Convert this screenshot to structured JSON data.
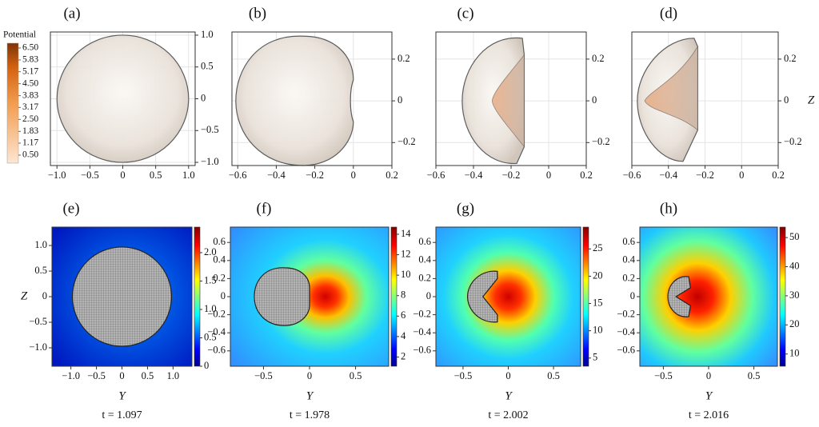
{
  "chart_data": [
    {
      "type": "surface",
      "panel_label": "(a)",
      "xlim": [
        -1.1,
        1.1
      ],
      "ylim": [
        -1.05,
        1.05
      ],
      "xticks": [
        {
          "value": -1,
          "label": "−1.0"
        },
        {
          "value": -0.5,
          "label": "−0.5"
        },
        0,
        0.5,
        {
          "value": 1,
          "label": "1.0"
        }
      ],
      "yticks": [
        {
          "value": -1,
          "label": "−1.0"
        },
        {
          "value": -0.5,
          "label": "−0.5"
        },
        0,
        0.5,
        {
          "value": 1,
          "label": "1.0"
        }
      ],
      "grid": true,
      "colorbar": {
        "title": "Potential",
        "ticks": [
          {
            "value": 6.5,
            "label": "6.50"
          },
          5.83,
          5.17,
          {
            "value": 4.5,
            "label": "4.50"
          },
          3.83,
          3.17,
          {
            "value": 2.5,
            "label": "2.50"
          },
          1.83,
          1.17,
          {
            "value": 0.5,
            "label": "0.50"
          }
        ]
      }
    },
    {
      "type": "surface",
      "panel_label": "(b)",
      "xlim": [
        -0.63,
        0.2
      ],
      "ylim": [
        -0.31,
        0.33
      ],
      "xticks": [
        {
          "value": -0.6,
          "label": "−0.6"
        },
        {
          "value": -0.4,
          "label": "−0.4"
        },
        {
          "value": -0.2,
          "label": "−0.2"
        },
        0,
        0.2
      ],
      "yticks": [
        {
          "value": -0.2,
          "label": "−0.2"
        },
        0,
        0.2
      ],
      "grid": true
    },
    {
      "type": "surface",
      "panel_label": "(c)",
      "xlim": [
        -0.6,
        0.2
      ],
      "ylim": [
        -0.31,
        0.33
      ],
      "xticks": [
        {
          "value": -0.6,
          "label": "−0.6"
        },
        {
          "value": -0.4,
          "label": "−0.4"
        },
        {
          "value": -0.2,
          "label": "−0.2"
        },
        0,
        0.2
      ],
      "yticks": [
        {
          "value": -0.2,
          "label": "−0.2"
        },
        0,
        0.2
      ],
      "grid": true
    },
    {
      "type": "surface",
      "panel_label": "(d)",
      "xlim": [
        -0.6,
        0.2
      ],
      "ylim": [
        -0.31,
        0.33
      ],
      "xticks": [
        {
          "value": -0.6,
          "label": "−0.6"
        },
        {
          "value": -0.4,
          "label": "−0.4"
        },
        {
          "value": -0.2,
          "label": "−0.2"
        },
        0,
        0.2
      ],
      "yticks": [
        {
          "value": -0.2,
          "label": "−0.2"
        },
        0,
        0.2
      ],
      "grid": true,
      "y_label": "Z"
    },
    {
      "type": "heatmap",
      "panel_label": "(e)",
      "xlim": [
        -1.37,
        1.37
      ],
      "ylim": [
        -1.36,
        1.36
      ],
      "xticks": [
        {
          "value": -1,
          "label": "−1.0"
        },
        {
          "value": -0.5,
          "label": "−0.5"
        },
        0,
        0.5,
        {
          "value": 1,
          "label": "1.0"
        }
      ],
      "yticks": [
        {
          "value": -1,
          "label": "−1.0"
        },
        {
          "value": -0.5,
          "label": "−0.5"
        },
        0,
        0.5,
        {
          "value": 1,
          "label": "1.0"
        }
      ],
      "x_label": "Y",
      "y_label": "Z",
      "time_label": "t = 1.097",
      "clim": [
        0,
        2.45
      ],
      "cticks": [
        0,
        0.5,
        {
          "value": 1,
          "label": "1.0"
        },
        1.5,
        {
          "value": 2,
          "label": "2.0"
        }
      ]
    },
    {
      "type": "heatmap",
      "panel_label": "(f)",
      "xlim": [
        -0.86,
        0.86
      ],
      "ylim": [
        -0.77,
        0.77
      ],
      "xticks": [
        {
          "value": -0.5,
          "label": "−0.5"
        },
        0,
        0.5
      ],
      "yticks": [
        {
          "value": -0.6,
          "label": "−0.6"
        },
        {
          "value": -0.4,
          "label": "−0.4"
        },
        {
          "value": -0.2,
          "label": "−0.2"
        },
        0,
        0.2,
        0.4,
        0.6
      ],
      "x_label": "Y",
      "time_label": "t = 1.978",
      "clim": [
        1.1,
        14.7
      ],
      "cticks": [
        2,
        4,
        6,
        8,
        10,
        12,
        14
      ]
    },
    {
      "type": "heatmap",
      "panel_label": "(g)",
      "xlim": [
        -0.8,
        0.8
      ],
      "ylim": [
        -0.77,
        0.77
      ],
      "xticks": [
        {
          "value": -0.5,
          "label": "−0.5"
        },
        0,
        0.5
      ],
      "yticks": [
        {
          "value": -0.6,
          "label": "−0.6"
        },
        {
          "value": -0.4,
          "label": "−0.4"
        },
        {
          "value": -0.2,
          "label": "−0.2"
        },
        0,
        0.2,
        0.4,
        0.6
      ],
      "x_label": "Y",
      "time_label": "t = 2.002",
      "clim": [
        3.5,
        29
      ],
      "cticks": [
        5,
        10,
        15,
        20,
        25
      ]
    },
    {
      "type": "heatmap",
      "panel_label": "(h)",
      "xlim": [
        -0.76,
        0.76
      ],
      "ylim": [
        -0.77,
        0.77
      ],
      "xticks": [
        {
          "value": -0.5,
          "label": "−0.5"
        },
        0,
        0.5
      ],
      "yticks": [
        {
          "value": -0.6,
          "label": "−0.6"
        },
        {
          "value": -0.4,
          "label": "−0.4"
        },
        {
          "value": -0.2,
          "label": "−0.2"
        },
        0,
        0.2,
        0.4,
        0.6
      ],
      "x_label": "Y",
      "time_label": "t = 2.016",
      "clim": [
        5.8,
        53.6
      ],
      "cticks": [
        10,
        20,
        30,
        40,
        50
      ]
    }
  ]
}
